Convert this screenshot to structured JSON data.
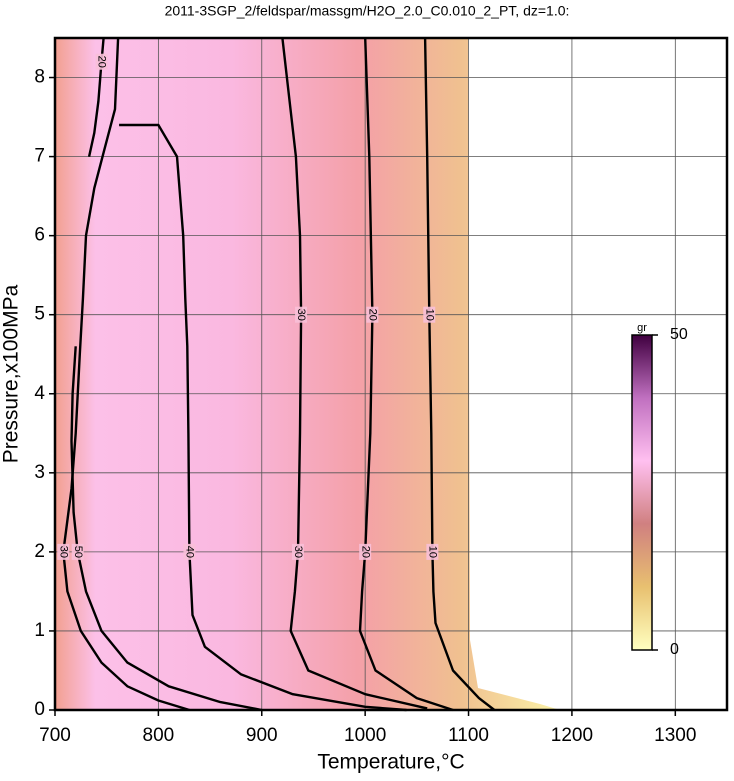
{
  "chart_data": {
    "type": "contour",
    "title": "2011-3SGP_2/feldspar/massgm/H2O_2.0_C0.010_2_PT, dz=1.0:",
    "x_label": "Temperature,°C",
    "y_label": "Pressure,x100MPa",
    "xlim": [
      700,
      1350
    ],
    "ylim": [
      0,
      8.5
    ],
    "xticks": [
      700,
      800,
      900,
      1000,
      1100,
      1200,
      1300
    ],
    "yticks": [
      0,
      1,
      2,
      3,
      4,
      5,
      6,
      7,
      8
    ],
    "grid": true,
    "series": [
      {
        "level": 10,
        "color": "#000000",
        "x": [
          1058,
          1060,
          1062,
          1064,
          1065,
          1066,
          1068,
          1085,
          1110,
          1125
        ],
        "y": [
          8.5,
          7,
          5,
          3.5,
          2,
          1.5,
          1.1,
          0.5,
          0.15,
          0
        ]
      },
      {
        "level": 20,
        "color": "#000000",
        "x": [
          1000,
          1004,
          1007,
          1005,
          1000,
          997,
          995,
          1010,
          1050,
          1085
        ],
        "y": [
          8.5,
          7,
          5,
          3.5,
          2,
          1.5,
          1,
          0.5,
          0.15,
          0
        ]
      },
      {
        "level": 30,
        "color": "#000000",
        "x": [
          920,
          933,
          937,
          938,
          937,
          935,
          932,
          928,
          945,
          1000,
          1060
        ],
        "y": [
          8.5,
          7,
          6,
          5,
          3.5,
          2,
          1.5,
          1,
          0.5,
          0.2,
          0.02
        ]
      },
      {
        "level": 40,
        "color": "#000000",
        "x": [
          762,
          800,
          818,
          824,
          826,
          828,
          829,
          830,
          833,
          845,
          880,
          930,
          1000,
          1040
        ],
        "y": [
          7.4,
          7.4,
          7,
          6,
          5.2,
          4.6,
          3.5,
          2,
          1.2,
          0.8,
          0.45,
          0.2,
          0.04,
          0
        ]
      },
      {
        "level": 30,
        "color": "#000000",
        "x": [
          761,
          758,
          748,
          738,
          730,
          727,
          724,
          720,
          716,
          712,
          708,
          712,
          725,
          745,
          770,
          800,
          830
        ],
        "y": [
          8.5,
          7.6,
          7.1,
          6.6,
          6,
          5.2,
          4.5,
          3.5,
          2.8,
          2.4,
          2,
          1.5,
          1,
          0.6,
          0.3,
          0.12,
          0
        ]
      },
      {
        "level": 50,
        "color": "#000000",
        "x": [
          720,
          717,
          716,
          718,
          722,
          730,
          745,
          770,
          810,
          860,
          900
        ],
        "y": [
          4.6,
          4,
          3.4,
          2.5,
          2,
          1.5,
          1,
          0.6,
          0.3,
          0.1,
          0
        ]
      },
      {
        "level": 20,
        "color": "#000000",
        "x": [
          747,
          745,
          742,
          738,
          733
        ],
        "y": [
          8.5,
          8.2,
          7.7,
          7.3,
          7
        ]
      }
    ],
    "colorbar": {
      "label": "gr",
      "lim": [
        0,
        50
      ],
      "ticks": [
        0,
        50
      ],
      "colors": [
        "#ffffc0",
        "#e8c070",
        "#d08080",
        "#ffc0f0",
        "#c070c0",
        "#400040"
      ]
    }
  }
}
